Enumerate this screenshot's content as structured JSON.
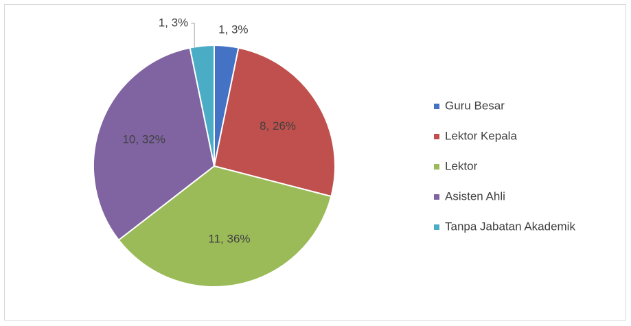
{
  "chart_data": {
    "type": "pie",
    "categories": [
      "Guru Besar",
      "Lektor Kepala",
      "Lektor",
      "Asisten Ahli",
      "Tanpa Jabatan Akademik"
    ],
    "values": [
      1,
      8,
      11,
      10,
      1
    ],
    "value_labels": [
      "1, 3%",
      "8, 26%",
      "11, 36%",
      "10, 32%",
      "1, 3%"
    ],
    "colors": [
      "#4472c4",
      "#c0504d",
      "#9bbb59",
      "#8064a2",
      "#4bacc6"
    ],
    "legend": "right"
  }
}
